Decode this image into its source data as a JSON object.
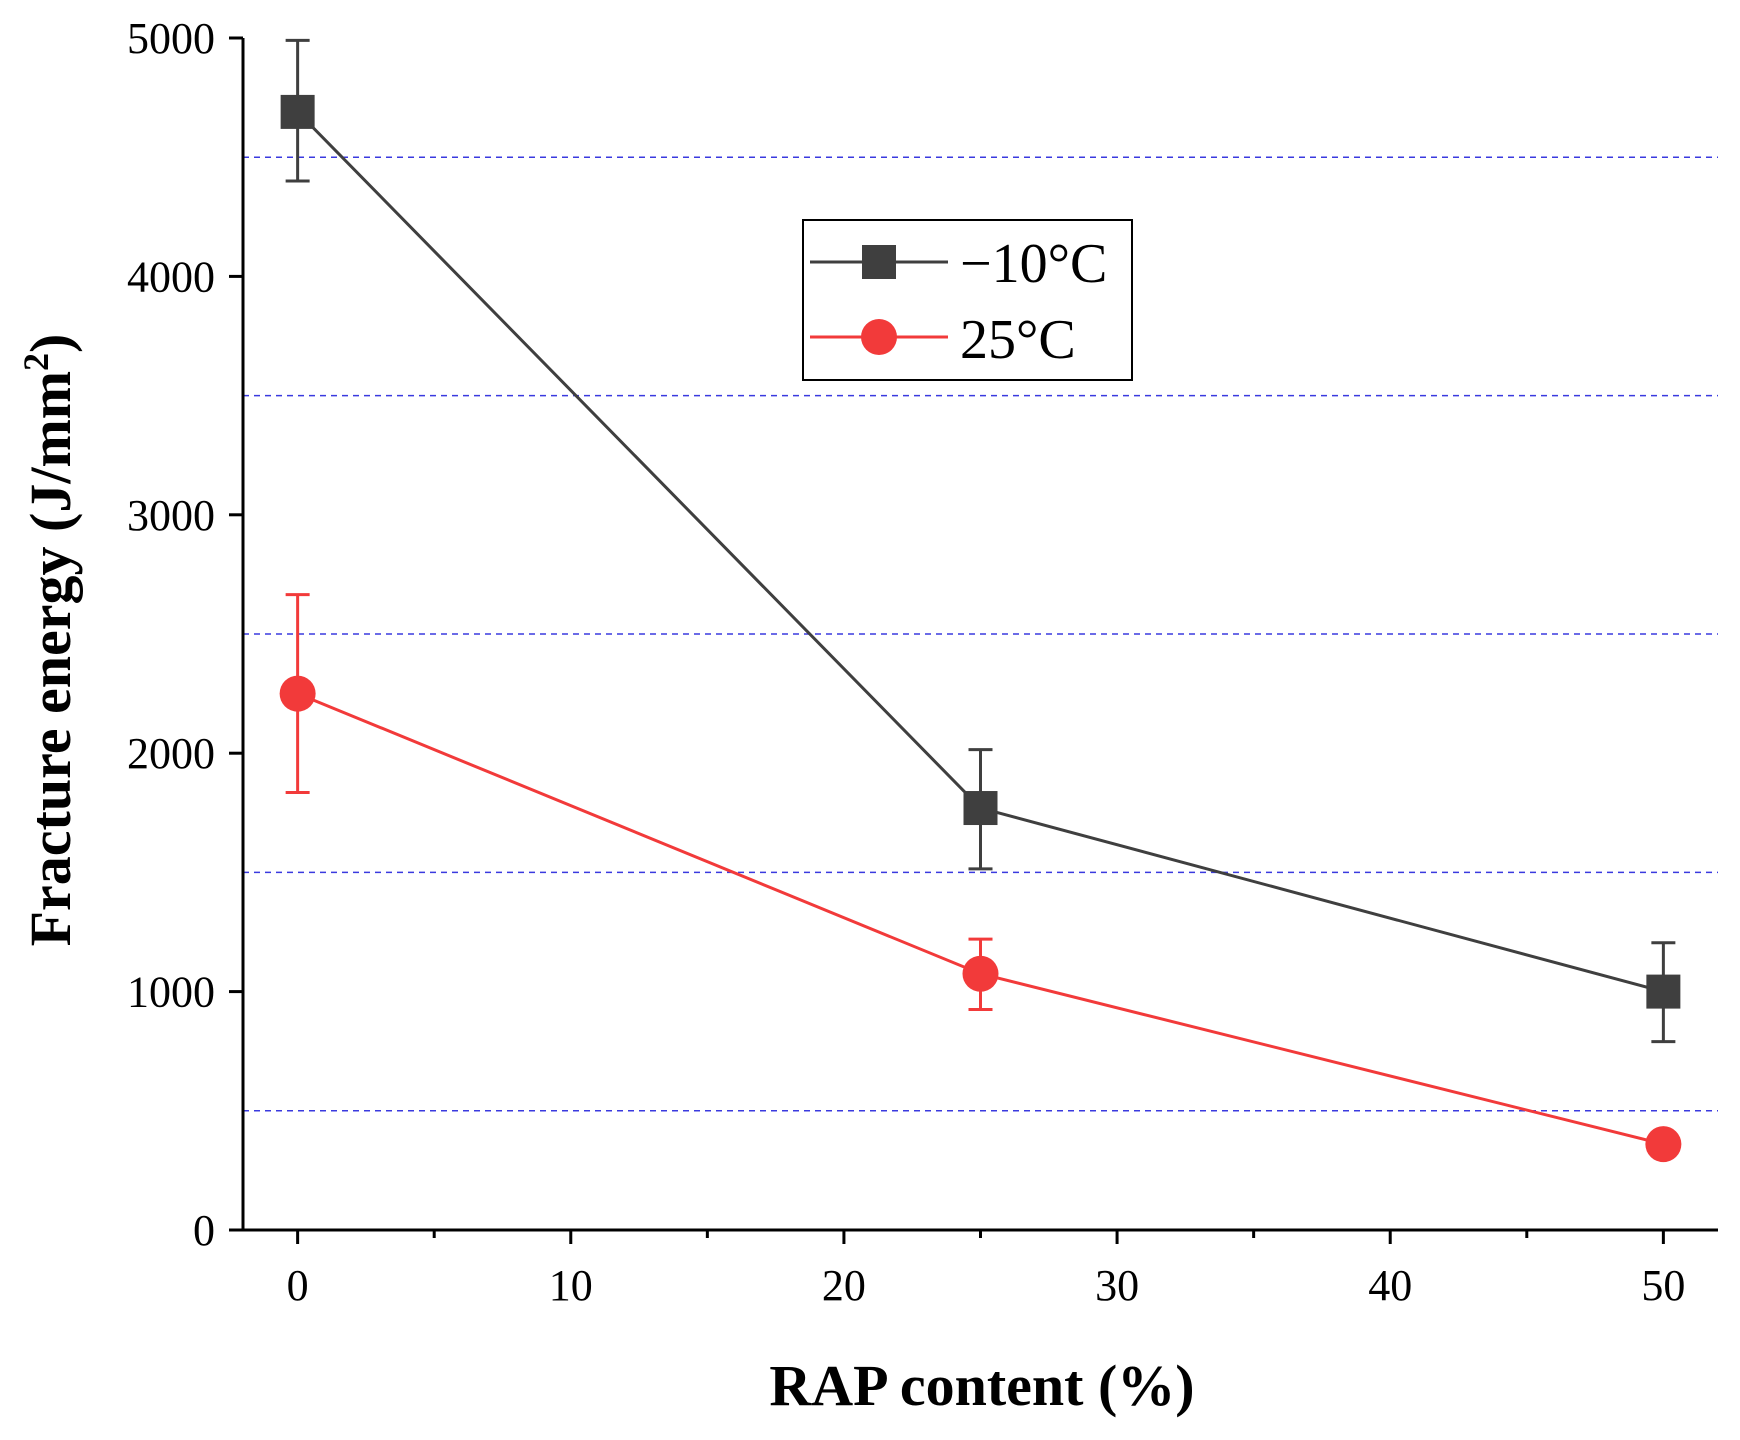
{
  "chart_data": {
    "type": "line",
    "title": "",
    "xlabel": "RAP content (%)",
    "ylabel": "Fracture energy (J/mm",
    "ylabel_superscript": "2",
    "ylabel_close": ")",
    "x": [
      0,
      25,
      50
    ],
    "xlim": [
      -2,
      52
    ],
    "ylim": [
      0,
      5000
    ],
    "xticks": [
      0,
      10,
      20,
      30,
      40,
      50
    ],
    "xtick_labels": [
      "0",
      "10",
      "20",
      "30",
      "40",
      "50"
    ],
    "xminor": [
      5,
      15,
      25,
      35,
      45
    ],
    "yticks": [
      0,
      1000,
      2000,
      3000,
      4000,
      5000
    ],
    "ytick_labels": [
      "0",
      "1000",
      "2000",
      "3000",
      "4000",
      "5000"
    ],
    "gridlines_y": [
      500,
      1500,
      2500,
      3500,
      4500
    ],
    "grid_color": "#3a3adf",
    "legend_position": "upper-middle",
    "series": [
      {
        "name": "−10°C",
        "marker": "square",
        "color": "#3f3f3f",
        "values": [
          4690,
          1770,
          1000
        ],
        "err_low": [
          4400,
          1515,
          790
        ],
        "err_high": [
          4990,
          2015,
          1205
        ]
      },
      {
        "name": "25°C",
        "marker": "circle",
        "color": "#f23a3a",
        "values": [
          2250,
          1075,
          360
        ],
        "err_low": [
          1835,
          925,
          360
        ],
        "err_high": [
          2665,
          1220,
          360
        ]
      }
    ]
  }
}
